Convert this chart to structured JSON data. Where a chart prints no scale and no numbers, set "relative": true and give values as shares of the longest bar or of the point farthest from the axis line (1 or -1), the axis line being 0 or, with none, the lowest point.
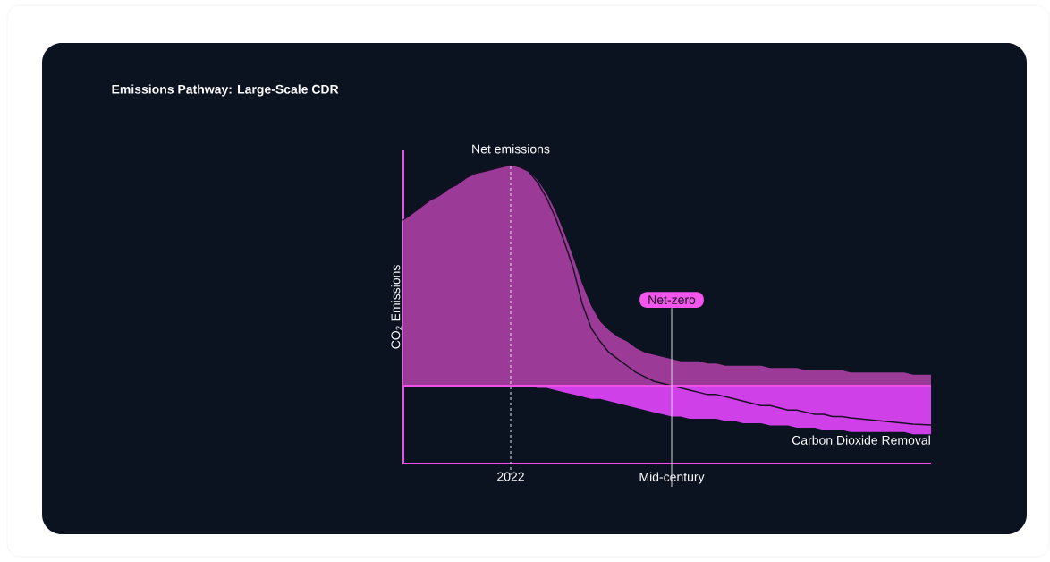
{
  "chart_data": {
    "type": "area",
    "title": "Emissions Pathway: Large-Scale CDR",
    "ylabel": "CO$_{2}$ Emissions",
    "relative": true,
    "categories": [
      null,
      null,
      null,
      null,
      null,
      null,
      null,
      null,
      null,
      null,
      null,
      null,
      "2022",
      null,
      null,
      null,
      null,
      null,
      null,
      null,
      null,
      null,
      null,
      null,
      null,
      null,
      null,
      null,
      null,
      null,
      "Mid-century",
      null,
      null,
      null,
      null,
      null,
      null,
      null,
      null,
      null,
      null,
      null,
      null,
      null,
      null,
      null,
      null,
      null,
      null,
      null,
      null,
      null,
      null,
      null,
      null,
      null,
      null,
      null,
      null,
      null
    ],
    "series": [
      {
        "color": "#9b3a97",
        "values": [
          0.75,
          0.78,
          0.81,
          0.84,
          0.86,
          0.89,
          0.91,
          0.94,
          0.96,
          0.97,
          0.98,
          0.99,
          1,
          0.99,
          0.97,
          0.93,
          0.87,
          0.79,
          0.69,
          0.58,
          0.46,
          0.36,
          0.29,
          0.25,
          0.22,
          0.2,
          0.17,
          0.15,
          0.14,
          0.13,
          0.12,
          0.11,
          0.11,
          0.11,
          0.1,
          0.1,
          0.09,
          0.09,
          0.09,
          0.09,
          0.09,
          0.08,
          0.08,
          0.08,
          0.08,
          0.07,
          0.07,
          0.07,
          0.07,
          0.07,
          0.06,
          0.06,
          0.06,
          0.06,
          0.06,
          0.06,
          0.06,
          0.05,
          0.05,
          0.05
        ]
      },
      {
        "name": "Carbon Dioxide Removal",
        "color": "#d040e8",
        "values": [
          0,
          0,
          0,
          0,
          0,
          0,
          0,
          0,
          0,
          0,
          0,
          0,
          0,
          0,
          0,
          -0.01,
          -0.01,
          -0.02,
          -0.03,
          -0.04,
          -0.05,
          -0.06,
          -0.06,
          -0.07,
          -0.08,
          -0.09,
          -0.1,
          -0.11,
          -0.12,
          -0.13,
          -0.14,
          -0.14,
          -0.15,
          -0.15,
          -0.15,
          -0.15,
          -0.16,
          -0.16,
          -0.17,
          -0.17,
          -0.17,
          -0.18,
          -0.18,
          -0.18,
          -0.19,
          -0.19,
          -0.19,
          -0.2,
          -0.2,
          -0.2,
          -0.21,
          -0.21,
          -0.21,
          -0.21,
          -0.21,
          -0.21,
          -0.21,
          -0.22,
          -0.22,
          -0.22
        ]
      },
      {
        "name": "Net emissions",
        "type": "line",
        "color": "#1a1025",
        "values": [
          0.75,
          0.78,
          0.81,
          0.84,
          0.86,
          0.89,
          0.91,
          0.94,
          0.96,
          0.97,
          0.98,
          0.99,
          1,
          0.99,
          0.97,
          0.92,
          0.85,
          0.76,
          0.65,
          0.53,
          0.37,
          0.26,
          0.2,
          0.15,
          0.12,
          0.09,
          0.06,
          0.04,
          0.02,
          0.01,
          0,
          -0.01,
          -0.02,
          -0.03,
          -0.04,
          -0.04,
          -0.05,
          -0.06,
          -0.07,
          -0.08,
          -0.09,
          -0.09,
          -0.1,
          -0.11,
          -0.11,
          -0.12,
          -0.13,
          -0.13,
          -0.14,
          -0.14,
          -0.146,
          -0.15,
          -0.154,
          -0.158,
          -0.162,
          -0.166,
          -0.17,
          -0.174,
          -0.176,
          -0.178
        ]
      }
    ],
    "ref_lines": [
      {
        "axis": "y",
        "value": 0,
        "color": "#f050e8"
      },
      {
        "axis": "x",
        "value": "2022",
        "line_style": "dashed",
        "color": "#e8e8e8"
      },
      {
        "axis": "x",
        "value": "Mid-century",
        "label": "Net-zero",
        "color": "#d8d8d8"
      }
    ]
  }
}
